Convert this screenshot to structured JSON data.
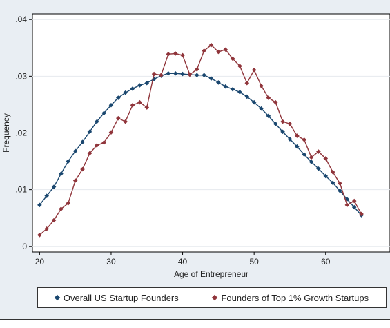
{
  "chart_data": {
    "type": "line",
    "title": "",
    "xlabel": "Age of Entrepreneur",
    "ylabel": "Frequency",
    "xlim": [
      19,
      69
    ],
    "ylim": [
      -0.001,
      0.041
    ],
    "xticks": [
      20,
      30,
      40,
      50,
      60
    ],
    "xtick_labels": [
      "20",
      "30",
      "40",
      "50",
      "60"
    ],
    "yticks": [
      0,
      0.01,
      0.02,
      0.03,
      0.04
    ],
    "ytick_labels": [
      "0",
      ".01",
      ".02",
      ".03",
      ".04"
    ],
    "grid": true,
    "legend": "bottom",
    "series": [
      {
        "name": "Overall US Startup Founders",
        "color": "#1a476f",
        "marker": "diamond",
        "x": [
          20,
          21,
          22,
          23,
          24,
          25,
          26,
          27,
          28,
          29,
          30,
          31,
          32,
          33,
          34,
          35,
          36,
          37,
          38,
          39,
          40,
          41,
          42,
          43,
          44,
          45,
          46,
          47,
          48,
          49,
          50,
          51,
          52,
          53,
          54,
          55,
          56,
          57,
          58,
          59,
          60,
          61,
          62,
          63,
          64,
          65
        ],
        "y": [
          0.0073,
          0.0089,
          0.0105,
          0.0128,
          0.015,
          0.0168,
          0.0184,
          0.0202,
          0.022,
          0.0235,
          0.0249,
          0.0262,
          0.0271,
          0.0278,
          0.0284,
          0.0288,
          0.0295,
          0.0301,
          0.0305,
          0.0305,
          0.0304,
          0.0303,
          0.0302,
          0.0302,
          0.0296,
          0.0289,
          0.0282,
          0.0277,
          0.0272,
          0.0264,
          0.0254,
          0.0243,
          0.023,
          0.0216,
          0.0202,
          0.0189,
          0.0176,
          0.0162,
          0.0149,
          0.0137,
          0.0124,
          0.0112,
          0.0098,
          0.0083,
          0.0069,
          0.0055
        ]
      },
      {
        "name": "Founders of Top 1% Growth Startups",
        "color": "#90353b",
        "marker": "diamond",
        "x": [
          20,
          21,
          22,
          23,
          24,
          25,
          26,
          27,
          28,
          29,
          30,
          31,
          32,
          33,
          34,
          35,
          36,
          37,
          38,
          39,
          40,
          41,
          42,
          43,
          44,
          45,
          46,
          47,
          48,
          49,
          50,
          51,
          52,
          53,
          54,
          55,
          56,
          57,
          58,
          59,
          60,
          61,
          62,
          63,
          64,
          65
        ],
        "y": [
          0.002,
          0.0031,
          0.0046,
          0.0066,
          0.0076,
          0.0116,
          0.0136,
          0.0164,
          0.0178,
          0.0183,
          0.0201,
          0.0226,
          0.022,
          0.0249,
          0.0254,
          0.0245,
          0.0304,
          0.0302,
          0.0339,
          0.034,
          0.0337,
          0.0303,
          0.0312,
          0.0345,
          0.0355,
          0.0343,
          0.0347,
          0.0331,
          0.0318,
          0.0288,
          0.0311,
          0.0283,
          0.0262,
          0.0254,
          0.022,
          0.0216,
          0.0195,
          0.0188,
          0.0157,
          0.0167,
          0.0155,
          0.0131,
          0.0111,
          0.0073,
          0.008,
          0.0057
        ]
      }
    ]
  }
}
